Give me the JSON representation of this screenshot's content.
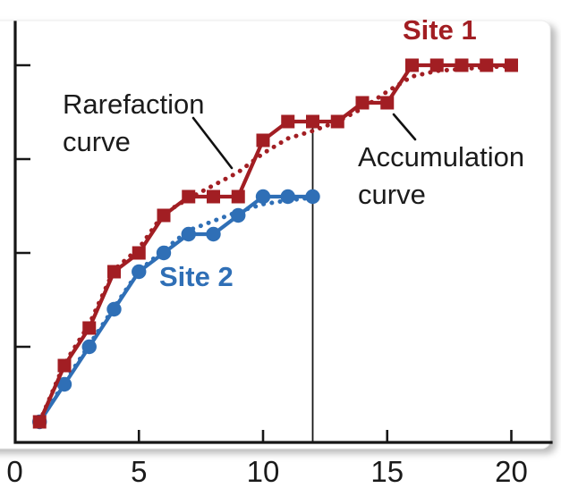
{
  "figure": {
    "background": "#ffffff",
    "axis_color": "#161616",
    "site1_color": "#a21e23",
    "site2_color": "#2f6fb6"
  },
  "chart_data": {
    "type": "line",
    "title": "",
    "xlabel": "",
    "ylabel": "",
    "x_axis": {
      "tick_labels": [
        "0",
        "5",
        "10",
        "15",
        "20"
      ],
      "tick_values": [
        0,
        5,
        10,
        15,
        20
      ],
      "range": [
        0,
        21.6
      ]
    },
    "y_axis": {
      "tick_values": [
        5,
        10,
        15,
        20
      ],
      "labels_shown": false,
      "range": [
        0,
        22.4
      ]
    },
    "reference_line": {
      "axis": "x",
      "value": 12
    },
    "series": [
      {
        "name": "site1_rarefaction",
        "site": "Site 1",
        "kind": "rarefaction",
        "line_style": "dotted",
        "marker": "none",
        "color": "#a21e23",
        "x": [
          1,
          2,
          3,
          4,
          5,
          6,
          7,
          8,
          9,
          10,
          11,
          12,
          13,
          14,
          15,
          16,
          17,
          18,
          19,
          20
        ],
        "y": [
          1,
          4.1,
          6.2,
          9.1,
          10.25,
          12.1,
          12.9,
          13.6,
          14.3,
          15.3,
          16.1,
          16.5,
          17,
          17.7,
          18.6,
          19.4,
          19.7,
          19.8,
          19.9,
          19.95
        ]
      },
      {
        "name": "site2_rarefaction",
        "site": "Site 2",
        "kind": "rarefaction",
        "line_style": "dotted",
        "marker": "none",
        "color": "#2f6fb6",
        "x": [
          1,
          2,
          3,
          4,
          5,
          6,
          7,
          8,
          9,
          10,
          11,
          12
        ],
        "y": [
          1,
          3.1,
          5.1,
          7.1,
          9.05,
          10.15,
          11.2,
          11.7,
          12.2,
          12.6,
          12.8,
          12.95
        ]
      },
      {
        "name": "site2_accumulation",
        "site": "Site 2",
        "kind": "accumulation",
        "line_style": "solid",
        "marker": "circle",
        "color": "#2f6fb6",
        "x": [
          1,
          2,
          3,
          4,
          5,
          6,
          7,
          8,
          9,
          10,
          11,
          12
        ],
        "y": [
          1,
          3,
          5,
          7,
          9,
          10,
          11,
          11,
          12,
          13,
          13,
          13
        ]
      },
      {
        "name": "site1_accumulation",
        "site": "Site 1",
        "kind": "accumulation",
        "line_style": "solid",
        "marker": "square",
        "color": "#a21e23",
        "x": [
          1,
          2,
          3,
          4,
          5,
          6,
          7,
          8,
          9,
          10,
          11,
          12,
          13,
          14,
          15,
          16,
          17,
          18,
          19,
          20
        ],
        "y": [
          1,
          4,
          6,
          9,
          10,
          12,
          13,
          13,
          13,
          16,
          17,
          17,
          17,
          18,
          18,
          20,
          20,
          20,
          20,
          20
        ]
      }
    ],
    "labels": {
      "site1": {
        "text": "Site 1",
        "color": "#a21e23"
      },
      "site2": {
        "text": "Site 2",
        "color": "#2f6fb6"
      },
      "rarefaction": {
        "line1": "Rarefaction",
        "line2": "curve"
      },
      "accumulation": {
        "line1": "Accumulation",
        "line2": "curve"
      }
    },
    "legend_position": "none",
    "grid": false
  }
}
